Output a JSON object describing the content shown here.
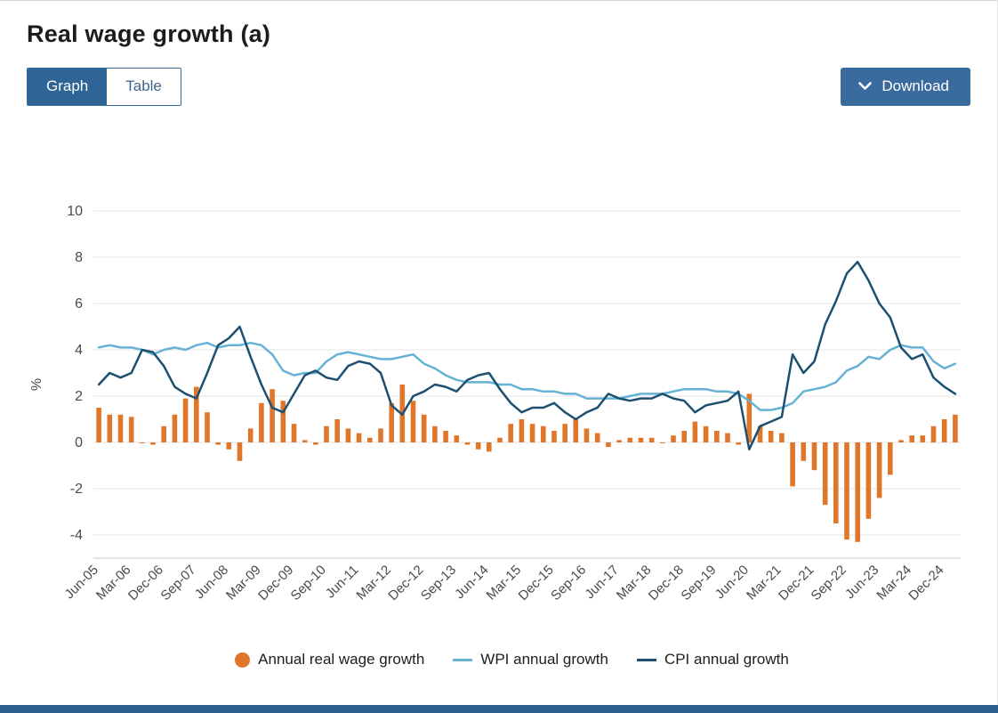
{
  "page": {
    "title": "Real wage growth (a)",
    "view_toggle": {
      "graph_label": "Graph",
      "table_label": "Table",
      "active": "Graph"
    },
    "download_button": {
      "label": "Download",
      "icon": "chevron-down-icon"
    }
  },
  "colors": {
    "accent_blue": "#2e6496",
    "download_blue": "#3a6b9e",
    "bar_orange": "#e0762a",
    "wpi_light_blue": "#66b2d4",
    "cpi_dark_blue": "#1d5070",
    "gridline": "#e4e4e4",
    "axis_line": "#c9c9c9",
    "footer_bar": "#2d608f"
  },
  "chart_data": {
    "type": "bar",
    "title": "Real wage growth (a)",
    "xlabel": "",
    "ylabel": "%",
    "ylim": [
      -5,
      10
    ],
    "y_ticks": [
      10,
      8,
      6,
      4,
      2,
      0,
      -2,
      -4
    ],
    "grid": true,
    "legend_position": "bottom",
    "x_tick_every": 3,
    "categories": [
      "Jun-05",
      "Sep-05",
      "Dec-05",
      "Mar-06",
      "Jun-06",
      "Sep-06",
      "Dec-06",
      "Mar-07",
      "Jun-07",
      "Sep-07",
      "Dec-07",
      "Mar-08",
      "Jun-08",
      "Sep-08",
      "Dec-08",
      "Mar-09",
      "Jun-09",
      "Sep-09",
      "Dec-09",
      "Mar-10",
      "Jun-10",
      "Sep-10",
      "Dec-10",
      "Mar-11",
      "Jun-11",
      "Sep-11",
      "Dec-11",
      "Mar-12",
      "Jun-12",
      "Sep-12",
      "Dec-12",
      "Mar-13",
      "Jun-13",
      "Sep-13",
      "Dec-13",
      "Mar-14",
      "Jun-14",
      "Sep-14",
      "Dec-14",
      "Mar-15",
      "Jun-15",
      "Sep-15",
      "Dec-15",
      "Mar-16",
      "Jun-16",
      "Sep-16",
      "Dec-16",
      "Mar-17",
      "Jun-17",
      "Sep-17",
      "Dec-17",
      "Mar-18",
      "Jun-18",
      "Sep-18",
      "Dec-18",
      "Mar-19",
      "Jun-19",
      "Sep-19",
      "Dec-19",
      "Mar-20",
      "Jun-20",
      "Sep-20",
      "Dec-20",
      "Mar-21",
      "Jun-21",
      "Sep-21",
      "Dec-21",
      "Mar-22",
      "Jun-22",
      "Sep-22",
      "Dec-22",
      "Mar-23",
      "Jun-23",
      "Sep-23",
      "Dec-23",
      "Mar-24",
      "Jun-24",
      "Sep-24",
      "Dec-24",
      "Mar-25"
    ],
    "series": [
      {
        "name": "Annual real wage growth",
        "type": "bar",
        "color": "#e0762a",
        "values": [
          1.5,
          1.2,
          1.2,
          1.1,
          0.0,
          -0.1,
          0.7,
          1.2,
          1.9,
          2.4,
          1.3,
          -0.1,
          -0.3,
          -0.8,
          0.6,
          1.7,
          2.3,
          1.8,
          0.8,
          0.1,
          -0.1,
          0.7,
          1.0,
          0.6,
          0.4,
          0.2,
          0.6,
          1.7,
          2.5,
          1.8,
          1.2,
          0.7,
          0.5,
          0.3,
          -0.1,
          -0.3,
          -0.4,
          0.2,
          0.8,
          1.0,
          0.8,
          0.7,
          0.5,
          0.8,
          1.0,
          0.6,
          0.4,
          -0.2,
          0.1,
          0.2,
          0.2,
          0.2,
          0.0,
          0.3,
          0.5,
          0.9,
          0.7,
          0.5,
          0.4,
          -0.1,
          2.1,
          0.7,
          0.5,
          0.4,
          -1.9,
          -0.8,
          -1.2,
          -2.7,
          -3.5,
          -4.2,
          -4.3,
          -3.3,
          -2.4,
          -1.4,
          0.1,
          0.3,
          0.3,
          0.7,
          1.0,
          1.2
        ]
      },
      {
        "name": "WPI annual growth",
        "type": "line",
        "color": "#66b2d4",
        "values": [
          4.1,
          4.2,
          4.1,
          4.1,
          4.0,
          3.8,
          4.0,
          4.1,
          4.0,
          4.2,
          4.3,
          4.1,
          4.2,
          4.2,
          4.3,
          4.2,
          3.8,
          3.1,
          2.9,
          3.0,
          3.0,
          3.5,
          3.8,
          3.9,
          3.8,
          3.7,
          3.6,
          3.6,
          3.7,
          3.8,
          3.4,
          3.2,
          2.9,
          2.7,
          2.6,
          2.6,
          2.6,
          2.5,
          2.5,
          2.3,
          2.3,
          2.2,
          2.2,
          2.1,
          2.1,
          1.9,
          1.9,
          1.9,
          1.9,
          2.0,
          2.1,
          2.1,
          2.1,
          2.2,
          2.3,
          2.3,
          2.3,
          2.2,
          2.2,
          2.1,
          1.8,
          1.4,
          1.4,
          1.5,
          1.7,
          2.2,
          2.3,
          2.4,
          2.6,
          3.1,
          3.3,
          3.7,
          3.6,
          4.0,
          4.2,
          4.1,
          4.1,
          3.5,
          3.2,
          3.4
        ]
      },
      {
        "name": "CPI annual growth",
        "type": "line",
        "color": "#1d5070",
        "values": [
          2.5,
          3.0,
          2.8,
          3.0,
          4.0,
          3.9,
          3.3,
          2.4,
          2.1,
          1.9,
          3.0,
          4.2,
          4.5,
          5.0,
          3.7,
          2.5,
          1.5,
          1.3,
          2.1,
          2.9,
          3.1,
          2.8,
          2.7,
          3.3,
          3.5,
          3.4,
          3.0,
          1.6,
          1.2,
          2.0,
          2.2,
          2.5,
          2.4,
          2.2,
          2.7,
          2.9,
          3.0,
          2.3,
          1.7,
          1.3,
          1.5,
          1.5,
          1.7,
          1.3,
          1.0,
          1.3,
          1.5,
          2.1,
          1.9,
          1.8,
          1.9,
          1.9,
          2.1,
          1.9,
          1.8,
          1.3,
          1.6,
          1.7,
          1.8,
          2.2,
          -0.3,
          0.7,
          0.9,
          1.1,
          3.8,
          3.0,
          3.5,
          5.1,
          6.1,
          7.3,
          7.8,
          7.0,
          6.0,
          5.4,
          4.1,
          3.6,
          3.8,
          2.8,
          2.4,
          2.1
        ]
      }
    ]
  }
}
